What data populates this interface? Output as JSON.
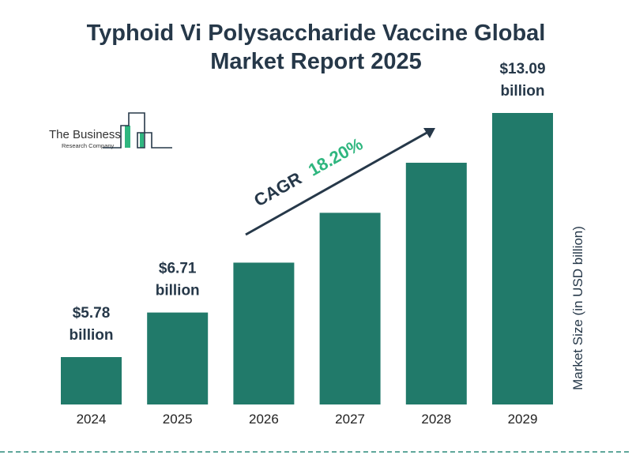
{
  "title_line1": "Typhoid Vi Polysaccharide Vaccine Global",
  "title_line2": "Market Report 2025",
  "logo": {
    "line1": "The Business",
    "line2": "Research Company"
  },
  "chart_data": {
    "type": "bar",
    "categories": [
      "2024",
      "2025",
      "2026",
      "2027",
      "2028",
      "2029"
    ],
    "values": [
      5.78,
      6.71,
      7.93,
      9.37,
      11.08,
      13.09
    ],
    "data_labels": [
      {
        "index": 0,
        "value": "$5.78",
        "unit": "billion"
      },
      {
        "index": 1,
        "value": "$6.71",
        "unit": "billion"
      },
      {
        "index": 5,
        "value": "$13.09",
        "unit": "billion"
      }
    ],
    "ylabel": "Market Size (in USD billion)",
    "annotation": {
      "label": "CAGR",
      "value": "18.20%"
    },
    "grid": false,
    "colors": {
      "bar": "#217a6a",
      "text": "#263849",
      "cagr": "#2fb67f"
    }
  }
}
